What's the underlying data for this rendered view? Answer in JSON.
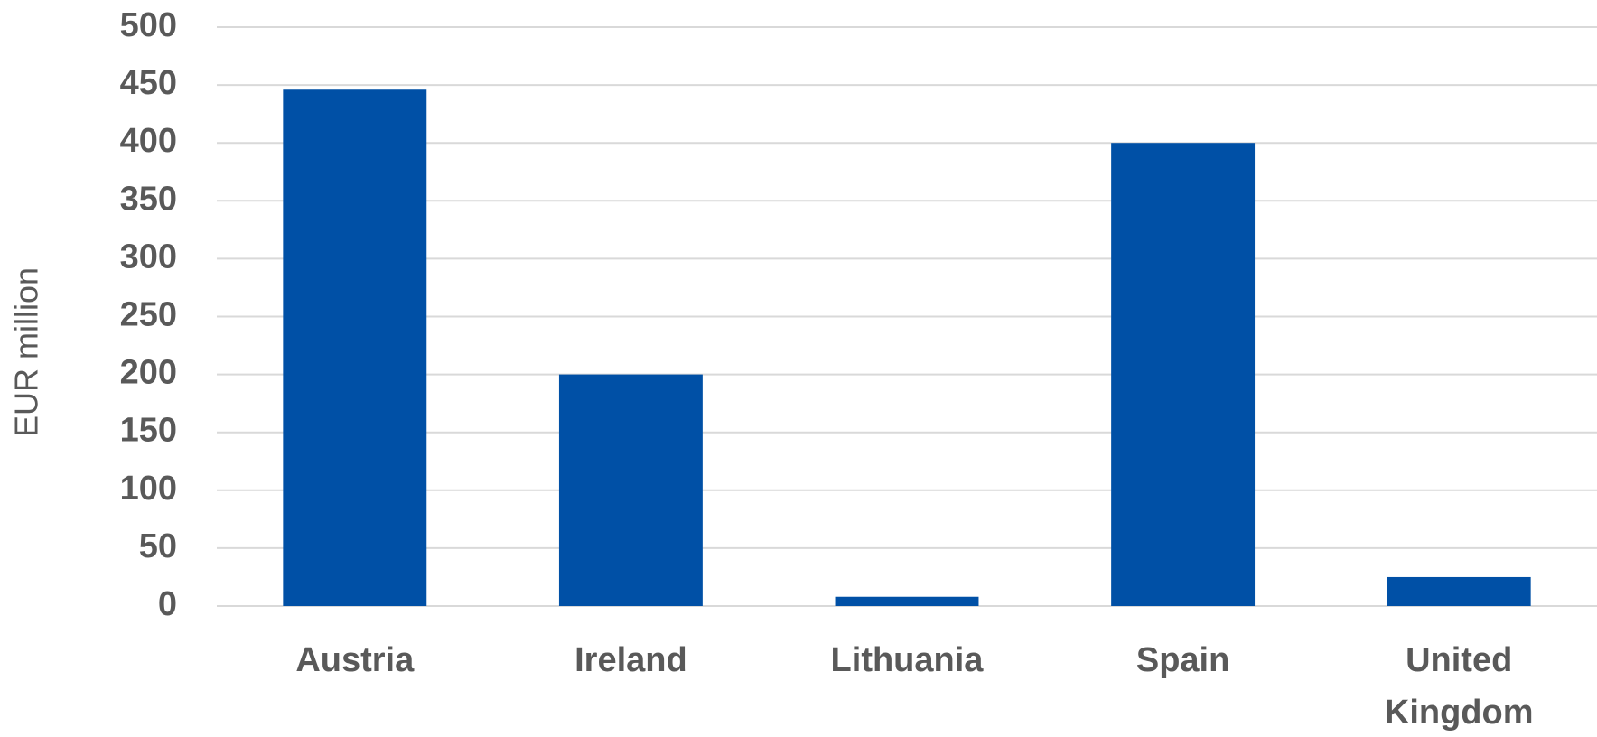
{
  "chart_data": {
    "type": "bar",
    "y_label": "EUR million",
    "categories": [
      "Austria",
      "Ireland",
      "Lithuania",
      "Spain",
      "United Kingdom"
    ],
    "values": [
      446,
      200,
      8,
      400,
      25
    ],
    "color": "#0050a6",
    "ylim": [
      0,
      500
    ],
    "yticks": [
      0,
      50,
      100,
      150,
      200,
      250,
      300,
      350,
      400,
      450,
      500
    ],
    "grid": true
  }
}
